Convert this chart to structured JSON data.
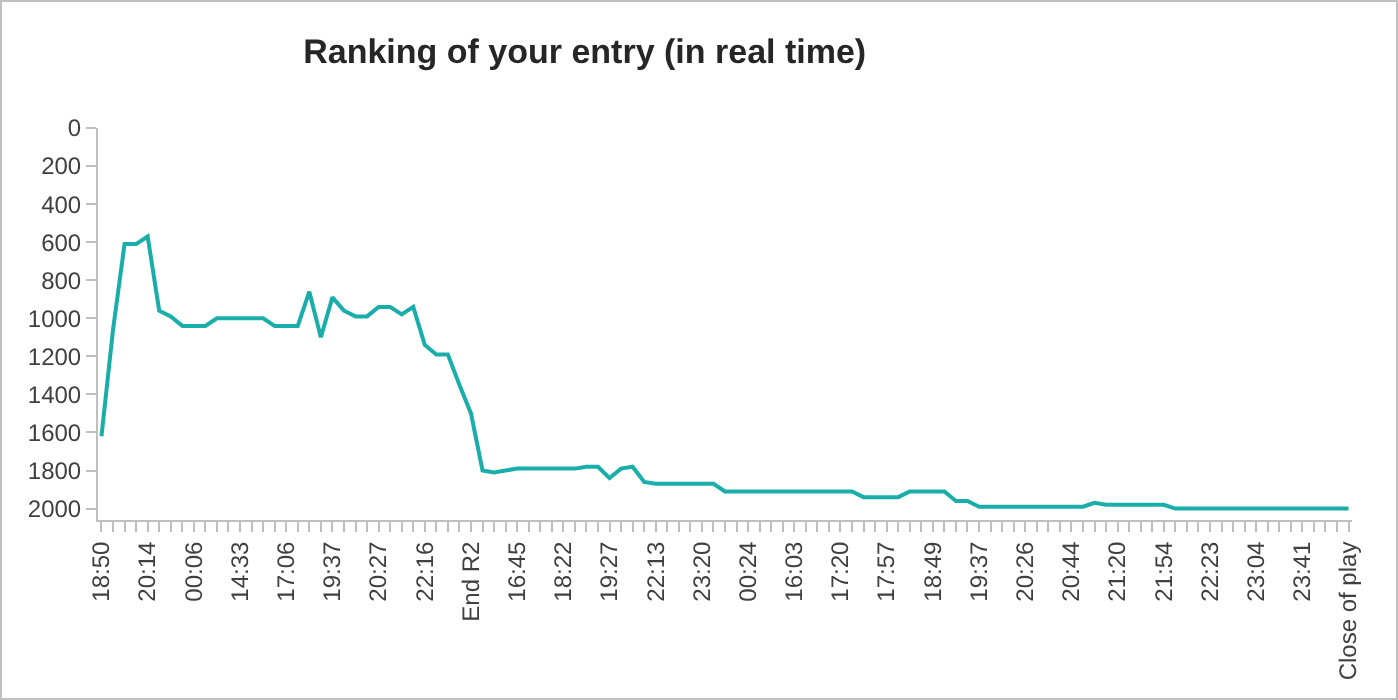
{
  "chart_data": {
    "type": "line",
    "title": "Ranking of your entry (in real time)",
    "categories": [
      "18:50",
      null,
      null,
      null,
      "20:14",
      null,
      null,
      null,
      "00:06",
      null,
      null,
      null,
      "14:33",
      null,
      null,
      null,
      "17:06",
      null,
      null,
      null,
      "19:37",
      null,
      null,
      null,
      "20:27",
      null,
      null,
      null,
      "22:16",
      null,
      null,
      null,
      "End R2",
      null,
      null,
      null,
      "16:45",
      null,
      null,
      null,
      "18:22",
      null,
      null,
      null,
      "19:27",
      null,
      null,
      null,
      "22:13",
      null,
      null,
      null,
      "23:20",
      null,
      null,
      null,
      "00:24",
      null,
      null,
      null,
      "16:03",
      null,
      null,
      null,
      "17:20",
      null,
      null,
      null,
      "17:57",
      null,
      null,
      null,
      "18:49",
      null,
      null,
      null,
      "19:37",
      null,
      null,
      null,
      "20:26",
      null,
      null,
      null,
      "20:44",
      null,
      null,
      null,
      "21:20",
      null,
      null,
      null,
      "21:54",
      null,
      null,
      null,
      "22:23",
      null,
      null,
      null,
      "23:04",
      null,
      null,
      null,
      "23:41",
      null,
      null,
      null,
      "Close of play"
    ],
    "series": [
      {
        "color": "#1aaeaa",
        "values": [
          1620,
          1060,
          610,
          610,
          570,
          960,
          990,
          1040,
          1040,
          1040,
          1000,
          1000,
          1000,
          1000,
          1000,
          1040,
          1040,
          1040,
          860,
          1100,
          890,
          960,
          990,
          990,
          940,
          940,
          980,
          940,
          1140,
          1190,
          1190,
          1350,
          1500,
          1800,
          1810,
          1800,
          1790,
          1790,
          1790,
          1790,
          1790,
          1790,
          1780,
          1780,
          1840,
          1790,
          1780,
          1860,
          1870,
          1870,
          1870,
          1870,
          1870,
          1870,
          1910,
          1910,
          1910,
          1910,
          1910,
          1910,
          1910,
          1910,
          1910,
          1910,
          1910,
          1910,
          1940,
          1940,
          1940,
          1940,
          1910,
          1910,
          1910,
          1910,
          1960,
          1960,
          1990,
          1990,
          1990,
          1990,
          1990,
          1990,
          1990,
          1990,
          1990,
          1990,
          1970,
          1980,
          1980,
          1980,
          1980,
          1980,
          1980,
          2000,
          2000,
          2000,
          2000,
          2000,
          2000,
          2000,
          2000,
          2000,
          2000,
          2000,
          2000,
          2000,
          2000,
          2000,
          2000
        ]
      }
    ],
    "ylim": [
      2060,
      0
    ],
    "yticks": [
      0,
      200,
      400,
      600,
      800,
      1000,
      1200,
      1400,
      1600,
      1800,
      2000
    ],
    "grid": false,
    "marker": "none",
    "line_style": "solid"
  }
}
